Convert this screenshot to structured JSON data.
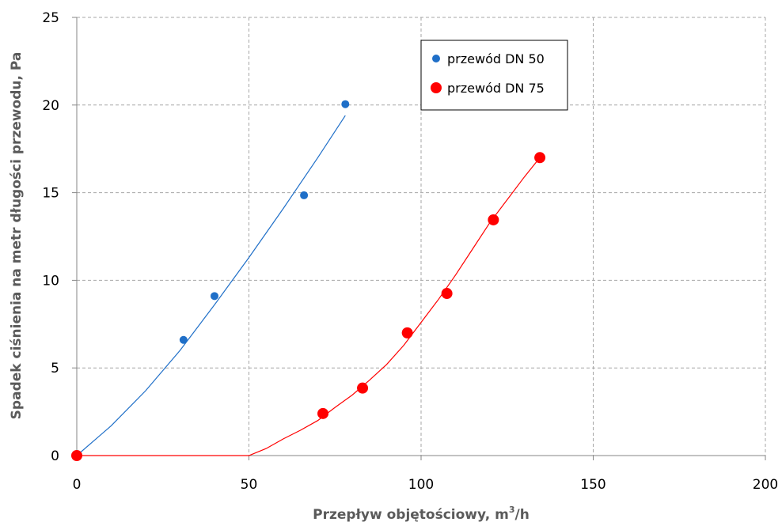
{
  "chart_data": {
    "type": "scatter",
    "xlabel_main": "Przepływ objętościowy, m",
    "xlabel_sup": "3",
    "xlabel_tail": "/h",
    "ylabel": "Spadek ciśnienia na metr długości przewodu, Pa",
    "xlim": [
      0,
      200
    ],
    "ylim": [
      0,
      25
    ],
    "x_ticks": [
      0,
      50,
      100,
      150,
      200
    ],
    "y_ticks": [
      0,
      5,
      10,
      15,
      20,
      25
    ],
    "grid": true,
    "legend_position": "top-right",
    "series": [
      {
        "name": "przewód DN 50",
        "color": "#1f6fc8",
        "marker": "small-circle",
        "points": [
          [
            0,
            0
          ],
          [
            31,
            6.6
          ],
          [
            40,
            9.1
          ],
          [
            66,
            14.85
          ],
          [
            78,
            20.05
          ]
        ],
        "trendline": [
          [
            0,
            0
          ],
          [
            10,
            1.7
          ],
          [
            20,
            3.7
          ],
          [
            30,
            6.0
          ],
          [
            40,
            8.6
          ],
          [
            50,
            11.3
          ],
          [
            60,
            14.1
          ],
          [
            70,
            17.0
          ],
          [
            78,
            19.4
          ]
        ]
      },
      {
        "name": "przewód DN 75",
        "color": "#ff0000",
        "marker": "large-circle",
        "points": [
          [
            0,
            0
          ],
          [
            71.5,
            2.4
          ],
          [
            83,
            3.85
          ],
          [
            96,
            7.0
          ],
          [
            107.5,
            9.25
          ],
          [
            121,
            13.45
          ],
          [
            134.5,
            17.0
          ]
        ],
        "trendline": [
          [
            0,
            0
          ],
          [
            50,
            0
          ],
          [
            55,
            0.4
          ],
          [
            60,
            0.95
          ],
          [
            65,
            1.45
          ],
          [
            70,
            2.0
          ],
          [
            75,
            2.75
          ],
          [
            80,
            3.45
          ],
          [
            85,
            4.3
          ],
          [
            90,
            5.2
          ],
          [
            95,
            6.3
          ],
          [
            100,
            7.6
          ],
          [
            105,
            8.9
          ],
          [
            110,
            10.3
          ],
          [
            115,
            11.8
          ],
          [
            120,
            13.3
          ],
          [
            125,
            14.6
          ],
          [
            130,
            15.9
          ],
          [
            134.5,
            17.0
          ]
        ]
      }
    ]
  }
}
